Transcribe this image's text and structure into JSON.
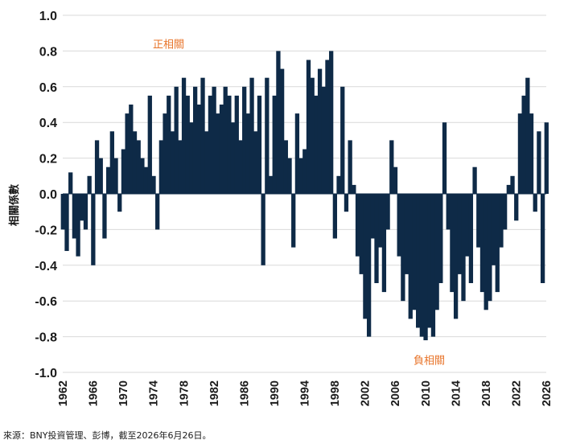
{
  "colors": {
    "bar": "#0e2a47",
    "grid": "#d9d9d9",
    "annotation": "#e8742a"
  },
  "source_text": "來源：BNY投資管理、彭博，截至2026年6月26日。",
  "chart_data": {
    "type": "area",
    "ylabel": "相關係數",
    "ylim": [
      -1.0,
      1.0
    ],
    "xlim": [
      1962,
      2026
    ],
    "grid": "horizontal",
    "y_ticks": [
      "1.0",
      "0.8",
      "0.6",
      "0.4",
      "0.2",
      "0.0",
      "-0.2",
      "-0.4",
      "-0.6",
      "-0.8",
      "-1.0"
    ],
    "y_tick_values": [
      1.0,
      0.8,
      0.6,
      0.4,
      0.2,
      0.0,
      -0.2,
      -0.4,
      -0.6,
      -0.8,
      -1.0
    ],
    "x_ticks": [
      "1962",
      "1966",
      "1970",
      "1974",
      "1978",
      "1982",
      "1986",
      "1990",
      "1994",
      "1998",
      "2002",
      "2006",
      "2010",
      "2014",
      "2018",
      "2022",
      "2026"
    ],
    "x_tick_values": [
      1962,
      1966,
      1970,
      1974,
      1978,
      1982,
      1986,
      1990,
      1994,
      1998,
      2002,
      2006,
      2010,
      2014,
      2018,
      2022,
      2026
    ],
    "annotations": [
      {
        "text": "正相關",
        "x": 1976,
        "y": 0.84
      },
      {
        "text": "負相關",
        "x": 2010.5,
        "y": -0.93
      }
    ],
    "series": [
      {
        "x": [
          1962.0,
          1962.5,
          1963.0,
          1963.5,
          1964.0,
          1964.5,
          1965.0,
          1965.5,
          1966.0,
          1966.5,
          1967.0,
          1967.5,
          1968.0,
          1968.5,
          1969.0,
          1969.5,
          1970.0,
          1970.5,
          1971.0,
          1971.5,
          1972.0,
          1972.5,
          1973.0,
          1973.5,
          1974.0,
          1974.5,
          1975.0,
          1975.5,
          1976.0,
          1976.5,
          1977.0,
          1977.5,
          1978.0,
          1978.5,
          1979.0,
          1979.5,
          1980.0,
          1980.5,
          1981.0,
          1981.5,
          1982.0,
          1982.5,
          1983.0,
          1983.5,
          1984.0,
          1984.5,
          1985.0,
          1985.5,
          1986.0,
          1986.5,
          1987.0,
          1987.5,
          1988.0,
          1988.5,
          1989.0,
          1989.5,
          1990.0,
          1990.5,
          1991.0,
          1991.5,
          1992.0,
          1992.5,
          1993.0,
          1993.5,
          1994.0,
          1994.5,
          1995.0,
          1995.5,
          1996.0,
          1996.5,
          1997.0,
          1997.5,
          1998.0,
          1998.5,
          1999.0,
          1999.5,
          2000.0,
          2000.5,
          2001.0,
          2001.5,
          2002.0,
          2002.5,
          2003.0,
          2003.5,
          2004.0,
          2004.5,
          2005.0,
          2005.5,
          2006.0,
          2006.5,
          2007.0,
          2007.5,
          2008.0,
          2008.5,
          2009.0,
          2009.5,
          2010.0,
          2010.5,
          2011.0,
          2011.5,
          2012.0,
          2012.5,
          2013.0,
          2013.5,
          2014.0,
          2014.5,
          2015.0,
          2015.5,
          2016.0,
          2016.5,
          2017.0,
          2017.5,
          2018.0,
          2018.5,
          2019.0,
          2019.5,
          2020.0,
          2020.5,
          2021.0,
          2021.5,
          2022.0,
          2022.5,
          2023.0,
          2023.5,
          2024.0,
          2024.5,
          2025.0,
          2025.5,
          2026.0
        ],
        "y": [
          -0.2,
          -0.32,
          0.12,
          -0.25,
          -0.35,
          -0.15,
          -0.2,
          0.1,
          -0.4,
          0.3,
          0.2,
          -0.25,
          0.15,
          0.35,
          0.2,
          -0.1,
          0.25,
          0.45,
          0.5,
          0.35,
          0.3,
          0.2,
          0.15,
          0.55,
          0.1,
          -0.2,
          0.3,
          0.45,
          0.55,
          0.35,
          0.6,
          0.3,
          0.65,
          0.55,
          0.4,
          0.6,
          0.5,
          0.65,
          0.35,
          0.55,
          0.6,
          0.45,
          0.5,
          0.6,
          0.55,
          0.4,
          0.55,
          0.3,
          0.6,
          0.45,
          0.65,
          0.35,
          0.55,
          -0.4,
          0.65,
          0.1,
          0.55,
          0.8,
          0.7,
          0.3,
          0.2,
          -0.3,
          0.45,
          0.2,
          0.25,
          0.75,
          0.65,
          0.55,
          0.7,
          0.6,
          0.75,
          0.8,
          -0.25,
          0.1,
          0.6,
          -0.1,
          0.3,
          0.05,
          -0.35,
          -0.45,
          -0.7,
          -0.8,
          -0.25,
          -0.5,
          -0.3,
          -0.55,
          -0.2,
          0.3,
          0.15,
          -0.35,
          -0.6,
          -0.45,
          -0.7,
          -0.65,
          -0.75,
          -0.8,
          -0.82,
          -0.75,
          -0.8,
          -0.65,
          -0.5,
          0.4,
          -0.2,
          -0.55,
          -0.7,
          -0.45,
          -0.6,
          -0.35,
          -0.5,
          0.15,
          -0.3,
          -0.55,
          -0.65,
          -0.6,
          -0.4,
          -0.55,
          -0.3,
          -0.2,
          0.05,
          0.1,
          -0.15,
          0.45,
          0.55,
          0.65,
          0.45,
          -0.1,
          0.35,
          -0.5,
          0.4
        ]
      }
    ]
  }
}
